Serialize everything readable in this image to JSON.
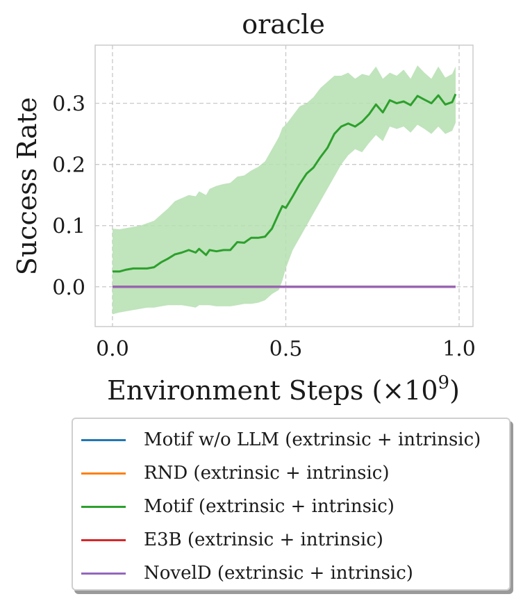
{
  "chart_data": {
    "type": "line",
    "title": "oracle",
    "xlabel": "Environment Steps (×10⁹)",
    "xlabel_main": "Environment Steps (×10",
    "xlabel_exp": "9",
    "xlabel_close": ")",
    "ylabel": "Success Rate",
    "xlim": [
      -0.05,
      1.04
    ],
    "ylim": [
      -0.065,
      0.395
    ],
    "xticks": [
      0.0,
      0.5,
      1.0
    ],
    "xtick_labels": [
      "0.0",
      "0.5",
      "1.0"
    ],
    "yticks": [
      0.0,
      0.1,
      0.2,
      0.3
    ],
    "ytick_labels": [
      "0.0",
      "0.1",
      "0.2",
      "0.3"
    ],
    "grid": true,
    "legend_position": "below",
    "series": [
      {
        "name": "Motif w/o LLM (extrinsic + intrinsic)",
        "color": "#1f77b4",
        "x": [
          0.0,
          0.99
        ],
        "y": [
          0.0,
          0.0
        ]
      },
      {
        "name": "RND (extrinsic + intrinsic)",
        "color": "#ff7f0e",
        "x": [
          0.0,
          0.99
        ],
        "y": [
          0.0,
          0.0
        ]
      },
      {
        "name": "Motif (extrinsic + intrinsic)",
        "color": "#2ca02c",
        "band_color": "#b5dfb0",
        "x": [
          0.0,
          0.02,
          0.04,
          0.06,
          0.08,
          0.1,
          0.12,
          0.14,
          0.16,
          0.18,
          0.2,
          0.22,
          0.24,
          0.25,
          0.27,
          0.28,
          0.3,
          0.32,
          0.34,
          0.36,
          0.38,
          0.4,
          0.42,
          0.44,
          0.46,
          0.48,
          0.49,
          0.5,
          0.52,
          0.54,
          0.56,
          0.58,
          0.6,
          0.62,
          0.64,
          0.66,
          0.68,
          0.7,
          0.72,
          0.74,
          0.76,
          0.78,
          0.8,
          0.82,
          0.84,
          0.86,
          0.88,
          0.9,
          0.92,
          0.94,
          0.96,
          0.98,
          0.99
        ],
        "y": [
          0.025,
          0.025,
          0.028,
          0.03,
          0.03,
          0.03,
          0.032,
          0.04,
          0.046,
          0.053,
          0.056,
          0.06,
          0.056,
          0.062,
          0.052,
          0.06,
          0.058,
          0.06,
          0.06,
          0.073,
          0.072,
          0.08,
          0.08,
          0.082,
          0.095,
          0.12,
          0.132,
          0.129,
          0.148,
          0.168,
          0.185,
          0.195,
          0.212,
          0.227,
          0.25,
          0.262,
          0.267,
          0.262,
          0.27,
          0.282,
          0.298,
          0.285,
          0.305,
          0.3,
          0.303,
          0.297,
          0.312,
          0.306,
          0.3,
          0.313,
          0.298,
          0.302,
          0.315
        ],
        "lower": [
          -0.045,
          -0.042,
          -0.04,
          -0.038,
          -0.036,
          -0.034,
          -0.034,
          -0.032,
          -0.03,
          -0.03,
          -0.03,
          -0.032,
          -0.034,
          -0.03,
          -0.03,
          -0.03,
          -0.032,
          -0.032,
          -0.032,
          -0.03,
          -0.028,
          -0.028,
          -0.026,
          -0.022,
          -0.012,
          -0.005,
          0.01,
          0.03,
          0.06,
          0.08,
          0.1,
          0.12,
          0.14,
          0.16,
          0.18,
          0.2,
          0.215,
          0.225,
          0.22,
          0.235,
          0.248,
          0.238,
          0.262,
          0.258,
          0.262,
          0.252,
          0.265,
          0.258,
          0.25,
          0.262,
          0.25,
          0.255,
          0.268
        ],
        "upper": [
          0.095,
          0.094,
          0.096,
          0.098,
          0.1,
          0.104,
          0.108,
          0.118,
          0.128,
          0.14,
          0.145,
          0.15,
          0.148,
          0.156,
          0.15,
          0.16,
          0.165,
          0.168,
          0.17,
          0.18,
          0.182,
          0.19,
          0.196,
          0.205,
          0.225,
          0.245,
          0.26,
          0.265,
          0.28,
          0.295,
          0.3,
          0.31,
          0.325,
          0.335,
          0.345,
          0.345,
          0.35,
          0.34,
          0.348,
          0.345,
          0.36,
          0.34,
          0.35,
          0.345,
          0.355,
          0.34,
          0.362,
          0.35,
          0.34,
          0.36,
          0.342,
          0.348,
          0.36
        ]
      },
      {
        "name": "E3B (extrinsic + intrinsic)",
        "color": "#d62728",
        "x": [
          0.0,
          0.99
        ],
        "y": [
          0.0,
          0.0
        ]
      },
      {
        "name": "NovelD (extrinsic + intrinsic)",
        "color": "#9467bd",
        "x": [
          0.0,
          0.99
        ],
        "y": [
          0.0,
          0.0
        ]
      }
    ]
  }
}
